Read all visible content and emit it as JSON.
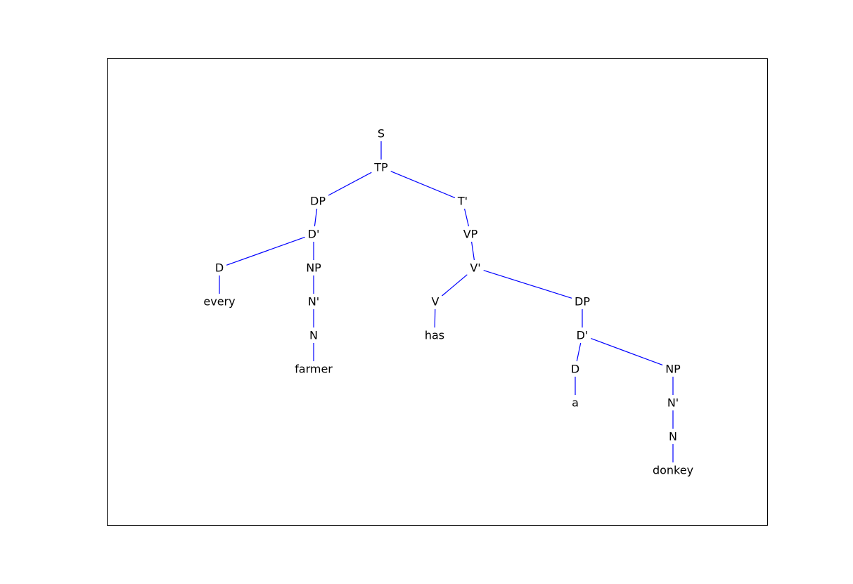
{
  "diagram": {
    "type": "syntax-tree",
    "edge_color": "#0000ff",
    "frame_color": "#000000",
    "nodes": [
      {
        "id": "s",
        "label": "S"
      },
      {
        "id": "tp",
        "label": "TP"
      },
      {
        "id": "dp1",
        "label": "DP"
      },
      {
        "id": "tbar",
        "label": "T'"
      },
      {
        "id": "dbar1",
        "label": "D'"
      },
      {
        "id": "vp",
        "label": "VP"
      },
      {
        "id": "d1",
        "label": "D"
      },
      {
        "id": "np1",
        "label": "NP"
      },
      {
        "id": "vbar",
        "label": "V'"
      },
      {
        "id": "every",
        "label": "every"
      },
      {
        "id": "nbar1",
        "label": "N'"
      },
      {
        "id": "v",
        "label": "V"
      },
      {
        "id": "dp2",
        "label": "DP"
      },
      {
        "id": "n1",
        "label": "N"
      },
      {
        "id": "has",
        "label": "has"
      },
      {
        "id": "dbar2",
        "label": "D'"
      },
      {
        "id": "farmer",
        "label": "farmer"
      },
      {
        "id": "d2",
        "label": "D"
      },
      {
        "id": "np2",
        "label": "NP"
      },
      {
        "id": "a",
        "label": "a"
      },
      {
        "id": "nbar2",
        "label": "N'"
      },
      {
        "id": "n2",
        "label": "N"
      },
      {
        "id": "donkey",
        "label": "donkey"
      }
    ],
    "edges": [
      [
        "s",
        "tp"
      ],
      [
        "tp",
        "dp1"
      ],
      [
        "tp",
        "tbar"
      ],
      [
        "dp1",
        "dbar1"
      ],
      [
        "dbar1",
        "d1"
      ],
      [
        "dbar1",
        "np1"
      ],
      [
        "d1",
        "every"
      ],
      [
        "np1",
        "nbar1"
      ],
      [
        "nbar1",
        "n1"
      ],
      [
        "n1",
        "farmer"
      ],
      [
        "tbar",
        "vp"
      ],
      [
        "vp",
        "vbar"
      ],
      [
        "vbar",
        "v"
      ],
      [
        "vbar",
        "dp2"
      ],
      [
        "v",
        "has"
      ],
      [
        "dp2",
        "dbar2"
      ],
      [
        "dbar2",
        "d2"
      ],
      [
        "dbar2",
        "np2"
      ],
      [
        "d2",
        "a"
      ],
      [
        "np2",
        "nbar2"
      ],
      [
        "nbar2",
        "n2"
      ],
      [
        "n2",
        "donkey"
      ]
    ]
  }
}
